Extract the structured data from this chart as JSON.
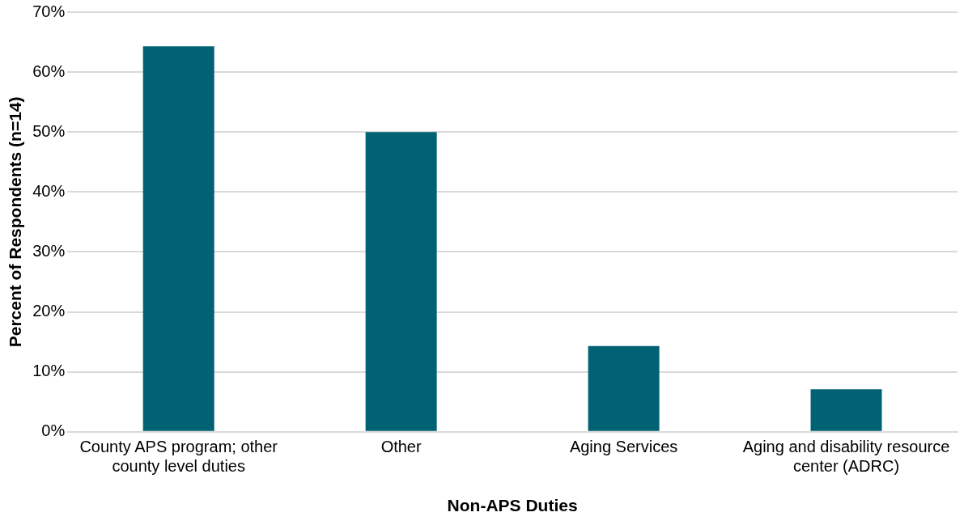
{
  "chart_data": {
    "type": "bar",
    "xlabel": "Non-APS Duties",
    "ylabel": "Percent of Respondents (n=14)",
    "categories": [
      "County APS program; other county level duties",
      "Other",
      "Aging Services",
      "Aging and disability resource center (ADRC)"
    ],
    "values": [
      64.3,
      50,
      14.3,
      7.1
    ],
    "color": "#006272",
    "ylim": [
      0,
      70
    ],
    "yticks": [
      {
        "value": 0,
        "label": "0%"
      },
      {
        "value": 10,
        "label": "10%"
      },
      {
        "value": 20,
        "label": "20%"
      },
      {
        "value": 30,
        "label": "30%"
      },
      {
        "value": 40,
        "label": "40%"
      },
      {
        "value": 50,
        "label": "50%"
      },
      {
        "value": 60,
        "label": "60%"
      },
      {
        "value": 70,
        "label": "70%"
      }
    ],
    "grid": "y",
    "legend": false
  }
}
